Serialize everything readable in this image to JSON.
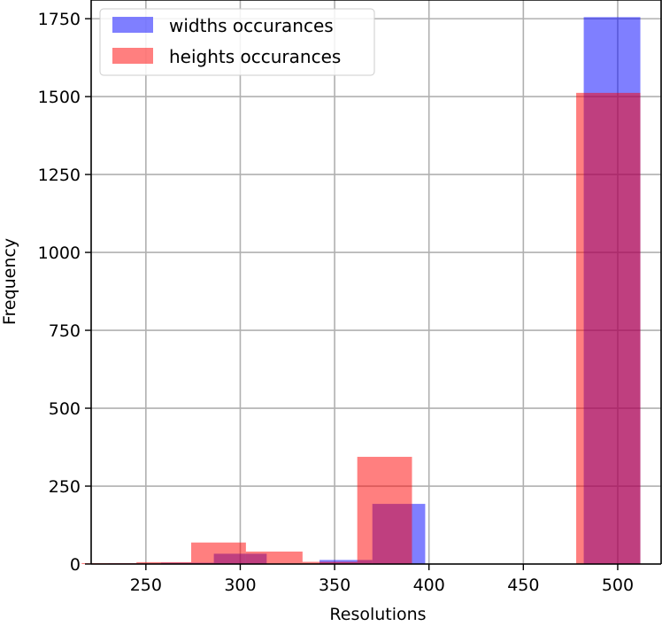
{
  "chart_data": {
    "type": "bar",
    "subtype": "overlapping-histogram",
    "title": "",
    "xlabel": "Resolutions",
    "ylabel": "Frequency",
    "xlim": [
      221,
      523
    ],
    "ylim": [
      0,
      1810
    ],
    "xticks": [
      250,
      300,
      350,
      400,
      450,
      500
    ],
    "yticks": [
      0,
      250,
      500,
      750,
      1000,
      1250,
      1500,
      1750
    ],
    "grid": true,
    "legend_position": "top-left",
    "series": [
      {
        "name": "widths occurances",
        "color": "#0000ff",
        "alpha": 0.5,
        "bins": [
          {
            "x0": 230,
            "x1": 258,
            "value": 2
          },
          {
            "x0": 258,
            "x1": 286,
            "value": 4
          },
          {
            "x0": 286,
            "x1": 314,
            "value": 33
          },
          {
            "x0": 314,
            "x1": 342,
            "value": 0
          },
          {
            "x0": 342,
            "x1": 370,
            "value": 13
          },
          {
            "x0": 370,
            "x1": 398,
            "value": 193
          },
          {
            "x0": 398,
            "x1": 426,
            "value": 0
          },
          {
            "x0": 426,
            "x1": 454,
            "value": 0
          },
          {
            "x0": 454,
            "x1": 482,
            "value": 0
          },
          {
            "x0": 482,
            "x1": 512,
            "value": 1755
          }
        ]
      },
      {
        "name": "heights occurances",
        "color": "#ff0000",
        "alpha": 0.5,
        "bins": [
          {
            "x0": 216,
            "x1": 245,
            "value": 3
          },
          {
            "x0": 245,
            "x1": 274,
            "value": 6
          },
          {
            "x0": 274,
            "x1": 303,
            "value": 69
          },
          {
            "x0": 303,
            "x1": 333,
            "value": 40
          },
          {
            "x0": 333,
            "x1": 362,
            "value": 7
          },
          {
            "x0": 362,
            "x1": 391,
            "value": 344
          },
          {
            "x0": 391,
            "x1": 420,
            "value": 0
          },
          {
            "x0": 420,
            "x1": 449,
            "value": 0
          },
          {
            "x0": 449,
            "x1": 478,
            "value": 0
          },
          {
            "x0": 478,
            "x1": 512,
            "value": 1512
          }
        ]
      }
    ]
  }
}
